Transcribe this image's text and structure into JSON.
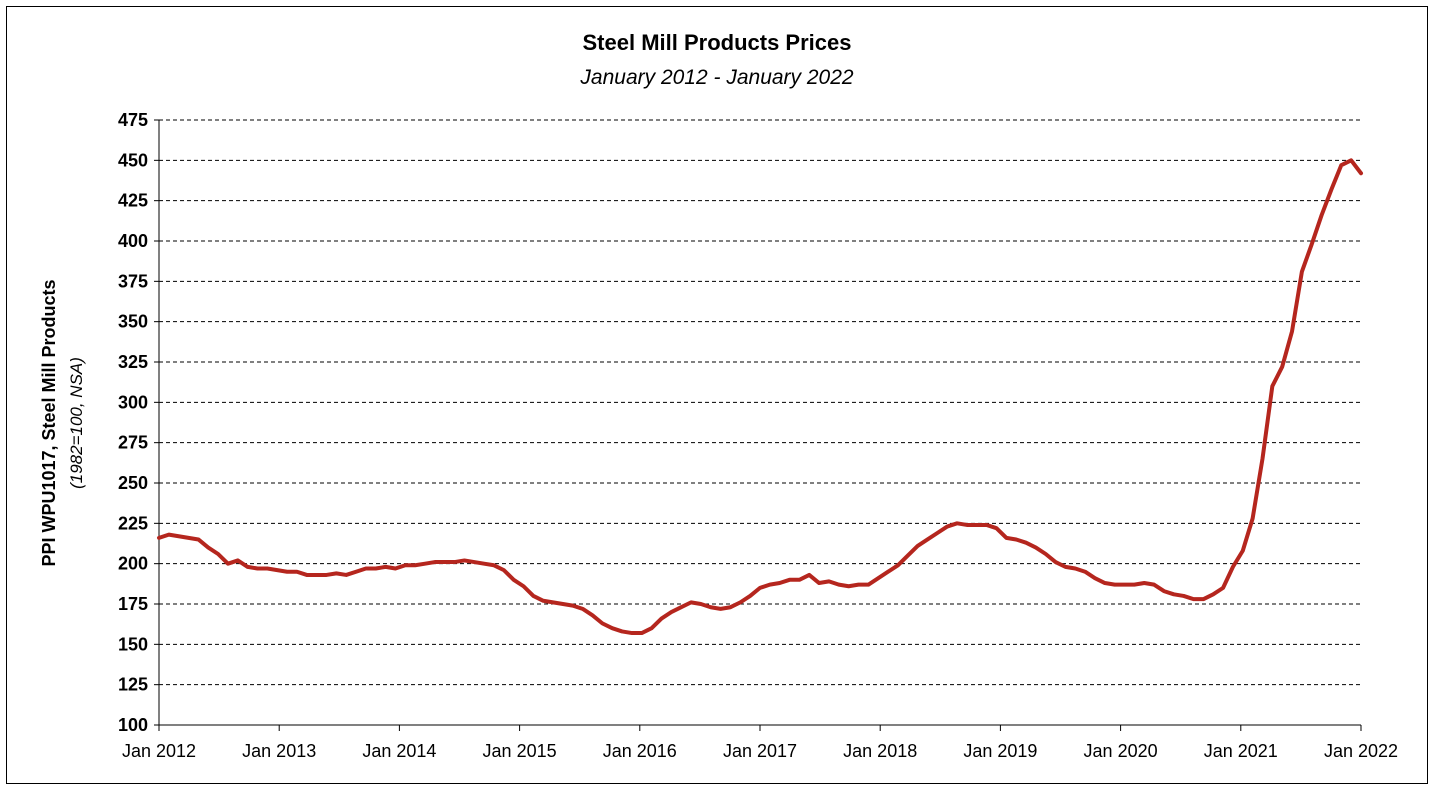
{
  "chart_data": {
    "type": "line",
    "title": "Steel Mill Products Prices",
    "subtitle": "January 2012 - January 2022",
    "ylabel": "PPI WPU1017, Steel Mill Products",
    "ylabel_note": "(1982=100, NSA)",
    "ylim": [
      100,
      475
    ],
    "yticks": [
      "100",
      "125",
      "150",
      "175",
      "200",
      "225",
      "250",
      "275",
      "300",
      "325",
      "350",
      "375",
      "400",
      "425",
      "450",
      "475"
    ],
    "xticks": [
      "Jan 2012",
      "Jan 2013",
      "Jan 2014",
      "Jan 2015",
      "Jan 2016",
      "Jan 2017",
      "Jan 2018",
      "Jan 2019",
      "Jan 2020",
      "Jan 2021",
      "Jan 2022"
    ],
    "x_start": "Jan 2012",
    "x_end": "Jan 2022",
    "grid": "horizontal-dashed",
    "line_color": "#b5261e",
    "series": [
      {
        "name": "",
        "values": [
          216,
          218,
          217,
          216,
          215,
          210,
          206,
          200,
          202,
          198,
          197,
          197,
          196,
          195,
          195,
          193,
          193,
          193,
          194,
          193,
          195,
          197,
          197,
          198,
          197,
          199,
          199,
          200,
          201,
          201,
          201,
          202,
          201,
          200,
          199,
          196,
          190,
          186,
          180,
          177,
          176,
          175,
          174,
          172,
          168,
          163,
          160,
          158,
          157,
          157,
          160,
          166,
          170,
          173,
          176,
          175,
          173,
          172,
          173,
          176,
          180,
          185,
          187,
          188,
          190,
          190,
          193,
          188,
          189,
          187,
          186,
          187,
          187,
          191,
          195,
          199,
          205,
          211,
          215,
          219,
          223,
          225,
          224,
          224,
          224,
          222,
          216,
          215,
          213,
          210,
          206,
          201,
          198,
          197,
          195,
          191,
          188,
          187,
          187,
          187,
          188,
          187,
          183,
          181,
          180,
          178,
          178,
          181,
          185,
          198,
          208,
          228,
          265,
          310,
          322,
          344,
          381,
          398,
          416,
          432,
          447,
          450,
          442
        ]
      }
    ]
  }
}
